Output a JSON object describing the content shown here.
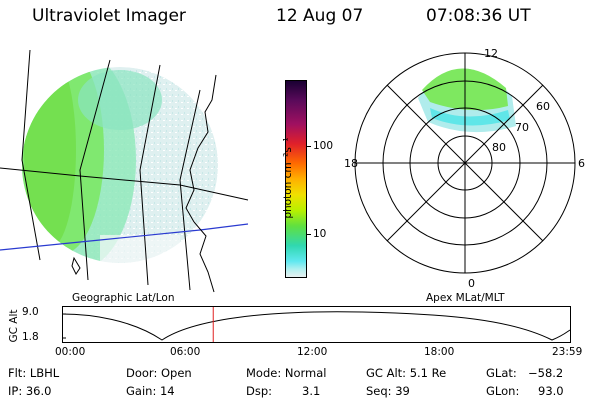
{
  "header": {
    "instrument": "Ultraviolet Imager",
    "date": "12 Aug 07",
    "time": "07:08:36 UT"
  },
  "colorbar": {
    "unit_label": "photon cm⁻²s⁻¹",
    "ticks": [
      "100",
      "10"
    ],
    "colors": [
      "#1a0033",
      "#5a0a5a",
      "#a01060",
      "#e0202a",
      "#ff6a00",
      "#ffb000",
      "#f0e000",
      "#b8f000",
      "#60e040",
      "#30d8b0",
      "#60e8f0",
      "#b0f0f0",
      "#e8f0f0"
    ]
  },
  "geo_panel": {
    "caption": "Geographic Lat/Lon"
  },
  "polar_panel": {
    "caption": "Apex MLat/MLT",
    "mlt_labels": {
      "top": "12",
      "left": "18",
      "right": "6",
      "bottom": "0"
    },
    "lat_labels": [
      "60",
      "70",
      "80"
    ]
  },
  "altitude_plot": {
    "ylabel": "GC Alt",
    "yticks": [
      "9.0",
      "1.8"
    ],
    "xticks": [
      "00:00",
      "06:00",
      "12:00",
      "18:00",
      "23:59"
    ],
    "current_time_hours": 7.14
  },
  "status": {
    "flt": "Flt: LBHL",
    "ip": "IP: 36.0",
    "door": "Door: Open",
    "gain": "Gain: 14",
    "mode": "Mode: Normal",
    "dsp_label": "Dsp:",
    "dsp_value": "3.1",
    "gcalt": "GC Alt: 5.1 Re",
    "seq": "Seq: 39",
    "glat_label": "GLat:",
    "glat_value": "−58.2",
    "glon_label": "GLon:",
    "glon_value": "93.0"
  },
  "colors": {
    "aurora_green": "#7ee860",
    "aurora_cyan": "#6fe6e0",
    "aurora_pale": "#d8efef",
    "marker_red": "#e02020",
    "line_blue": "#2a3ad0"
  }
}
